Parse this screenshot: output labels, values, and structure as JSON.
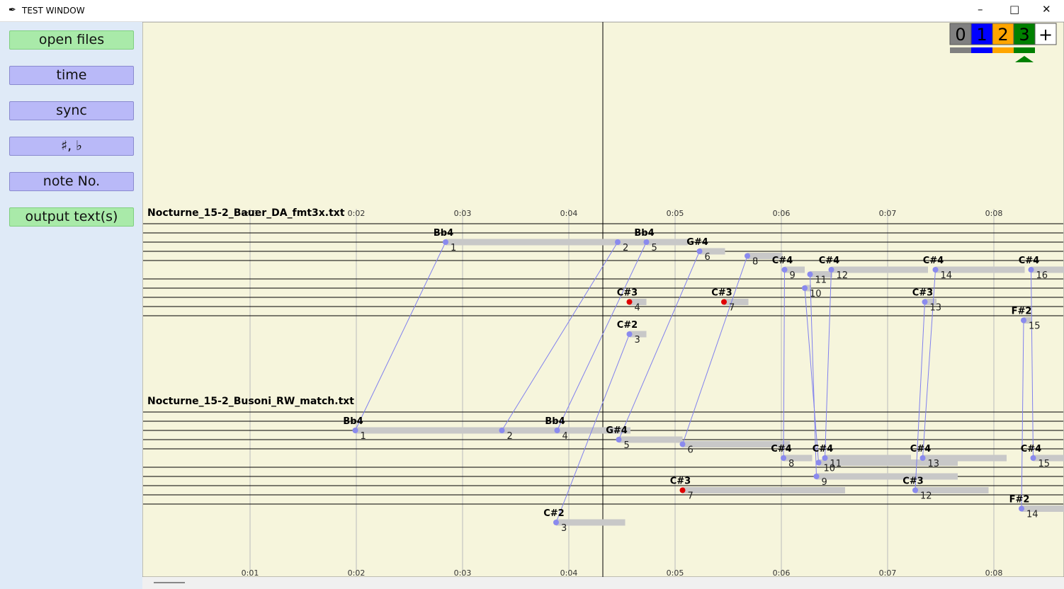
{
  "window": {
    "title": "TEST WINDOW"
  },
  "buttons": [
    "open files",
    "time",
    "sync",
    "♯, ♭",
    "note No.",
    "output text(s)"
  ],
  "tabs": [
    {
      "label": "0",
      "color": "#808080"
    },
    {
      "label": "1",
      "color": "#0000ff"
    },
    {
      "label": "2",
      "color": "#ffa500"
    },
    {
      "label": "3",
      "color": "#008000"
    },
    {
      "label": "+",
      "color": "#ffffff"
    }
  ],
  "time_ticks": [
    {
      "value": 1,
      "label": "0:01"
    },
    {
      "value": 2,
      "label": "0:02"
    },
    {
      "value": 3,
      "label": "0:03"
    },
    {
      "value": 4,
      "label": "0:04"
    },
    {
      "value": 5,
      "label": "0:05"
    },
    {
      "value": 6,
      "label": "0:06"
    },
    {
      "value": 7,
      "label": "0:07"
    },
    {
      "value": 8,
      "label": "0:08"
    }
  ],
  "tracks": [
    {
      "file": "Nocturne_15-2_Bauer_DA_fmt3x.txt",
      "notes": [
        {
          "number": "1",
          "label": "Bb4",
          "onset": 2.84,
          "duration": 1.73,
          "row": 4
        },
        {
          "number": "2",
          "onset": 4.46,
          "duration": 0.26,
          "row": 4
        },
        {
          "number": "3",
          "label": "C#2",
          "onset": 4.57,
          "duration": 0.16,
          "row": 24
        },
        {
          "number": "4",
          "label": "C#3",
          "onset": 4.57,
          "duration": 0.16,
          "row": 17
        },
        {
          "number": "5",
          "label": "Bb4",
          "onset": 4.73,
          "duration": 0.39,
          "row": 4
        },
        {
          "number": "6",
          "label": "G#4",
          "onset": 5.23,
          "duration": 0.24,
          "row": 6
        },
        {
          "number": "7",
          "label": "C#3",
          "onset": 5.46,
          "duration": 0.23,
          "row": 17
        },
        {
          "number": "8",
          "onset": 5.68,
          "duration": 0.33,
          "row": 7
        },
        {
          "number": "9",
          "label": "C#4",
          "onset": 6.03,
          "duration": 0.19,
          "row": 10
        },
        {
          "number": "10",
          "onset": 6.22,
          "duration": 0.06,
          "row": 14
        },
        {
          "number": "11",
          "onset": 6.27,
          "duration": 0.21,
          "row": 11
        },
        {
          "number": "12",
          "label": "C#4",
          "onset": 6.47,
          "duration": 0.91,
          "row": 10
        },
        {
          "number": "13",
          "label": "C#3",
          "onset": 7.35,
          "duration": 0.11,
          "row": 17
        },
        {
          "number": "14",
          "label": "C#4",
          "onset": 7.45,
          "duration": 0.84,
          "row": 10
        },
        {
          "number": "15",
          "label": "F#2",
          "onset": 8.28,
          "duration": 0.07,
          "row": 21
        },
        {
          "number": "16",
          "label": "C#4",
          "onset": 8.35,
          "duration": 0.4,
          "row": 10
        }
      ]
    },
    {
      "file": "Nocturne_15-2_Busoni_RW_match.txt",
      "notes": [
        {
          "number": "1",
          "label": "Bb4",
          "onset": 1.99,
          "duration": 2.58,
          "row": 4
        },
        {
          "number": "2",
          "onset": 3.37,
          "duration": 0.5,
          "row": 4
        },
        {
          "number": "3",
          "label": "C#2",
          "onset": 3.88,
          "duration": 0.65,
          "row": 24
        },
        {
          "number": "4",
          "label": "Bb4",
          "onset": 3.89,
          "duration": 0.69,
          "row": 4
        },
        {
          "number": "5",
          "label": "G#4",
          "onset": 4.47,
          "duration": 0.6,
          "row": 6
        },
        {
          "number": "6",
          "onset": 5.07,
          "duration": 1.01,
          "row": 7
        },
        {
          "number": "7",
          "label": "C#3",
          "onset": 5.07,
          "duration": 1.53,
          "row": 17
        },
        {
          "number": "8",
          "label": "C#4",
          "onset": 6.02,
          "duration": 0.27,
          "row": 10
        },
        {
          "number": "9",
          "onset": 6.33,
          "duration": 1.33,
          "row": 14
        },
        {
          "number": "10",
          "onset": 6.35,
          "duration": 1.31,
          "row": 11
        },
        {
          "number": "11",
          "label": "C#4",
          "onset": 6.41,
          "duration": 0.81,
          "row": 10
        },
        {
          "number": "12",
          "label": "C#3",
          "onset": 7.26,
          "duration": 0.69,
          "row": 17
        },
        {
          "number": "13",
          "label": "C#4",
          "onset": 7.33,
          "duration": 0.79,
          "row": 10
        },
        {
          "number": "14",
          "label": "F#2",
          "onset": 8.26,
          "duration": 0.4,
          "row": 21
        },
        {
          "number": "15",
          "label": "C#4",
          "onset": 8.37,
          "duration": 0.3,
          "row": 10
        }
      ]
    }
  ],
  "links": [
    [
      "1",
      "1"
    ],
    [
      "2",
      "2"
    ],
    [
      "5",
      "4"
    ],
    [
      "6",
      "5"
    ],
    [
      "8",
      "6"
    ],
    [
      "9",
      "8"
    ],
    [
      "10",
      "10"
    ],
    [
      "11",
      "9"
    ],
    [
      "12",
      "11"
    ],
    [
      "13",
      "12"
    ],
    [
      "14",
      "13"
    ],
    [
      "15",
      "14"
    ],
    [
      "16",
      "15"
    ],
    [
      "3",
      "3"
    ]
  ]
}
